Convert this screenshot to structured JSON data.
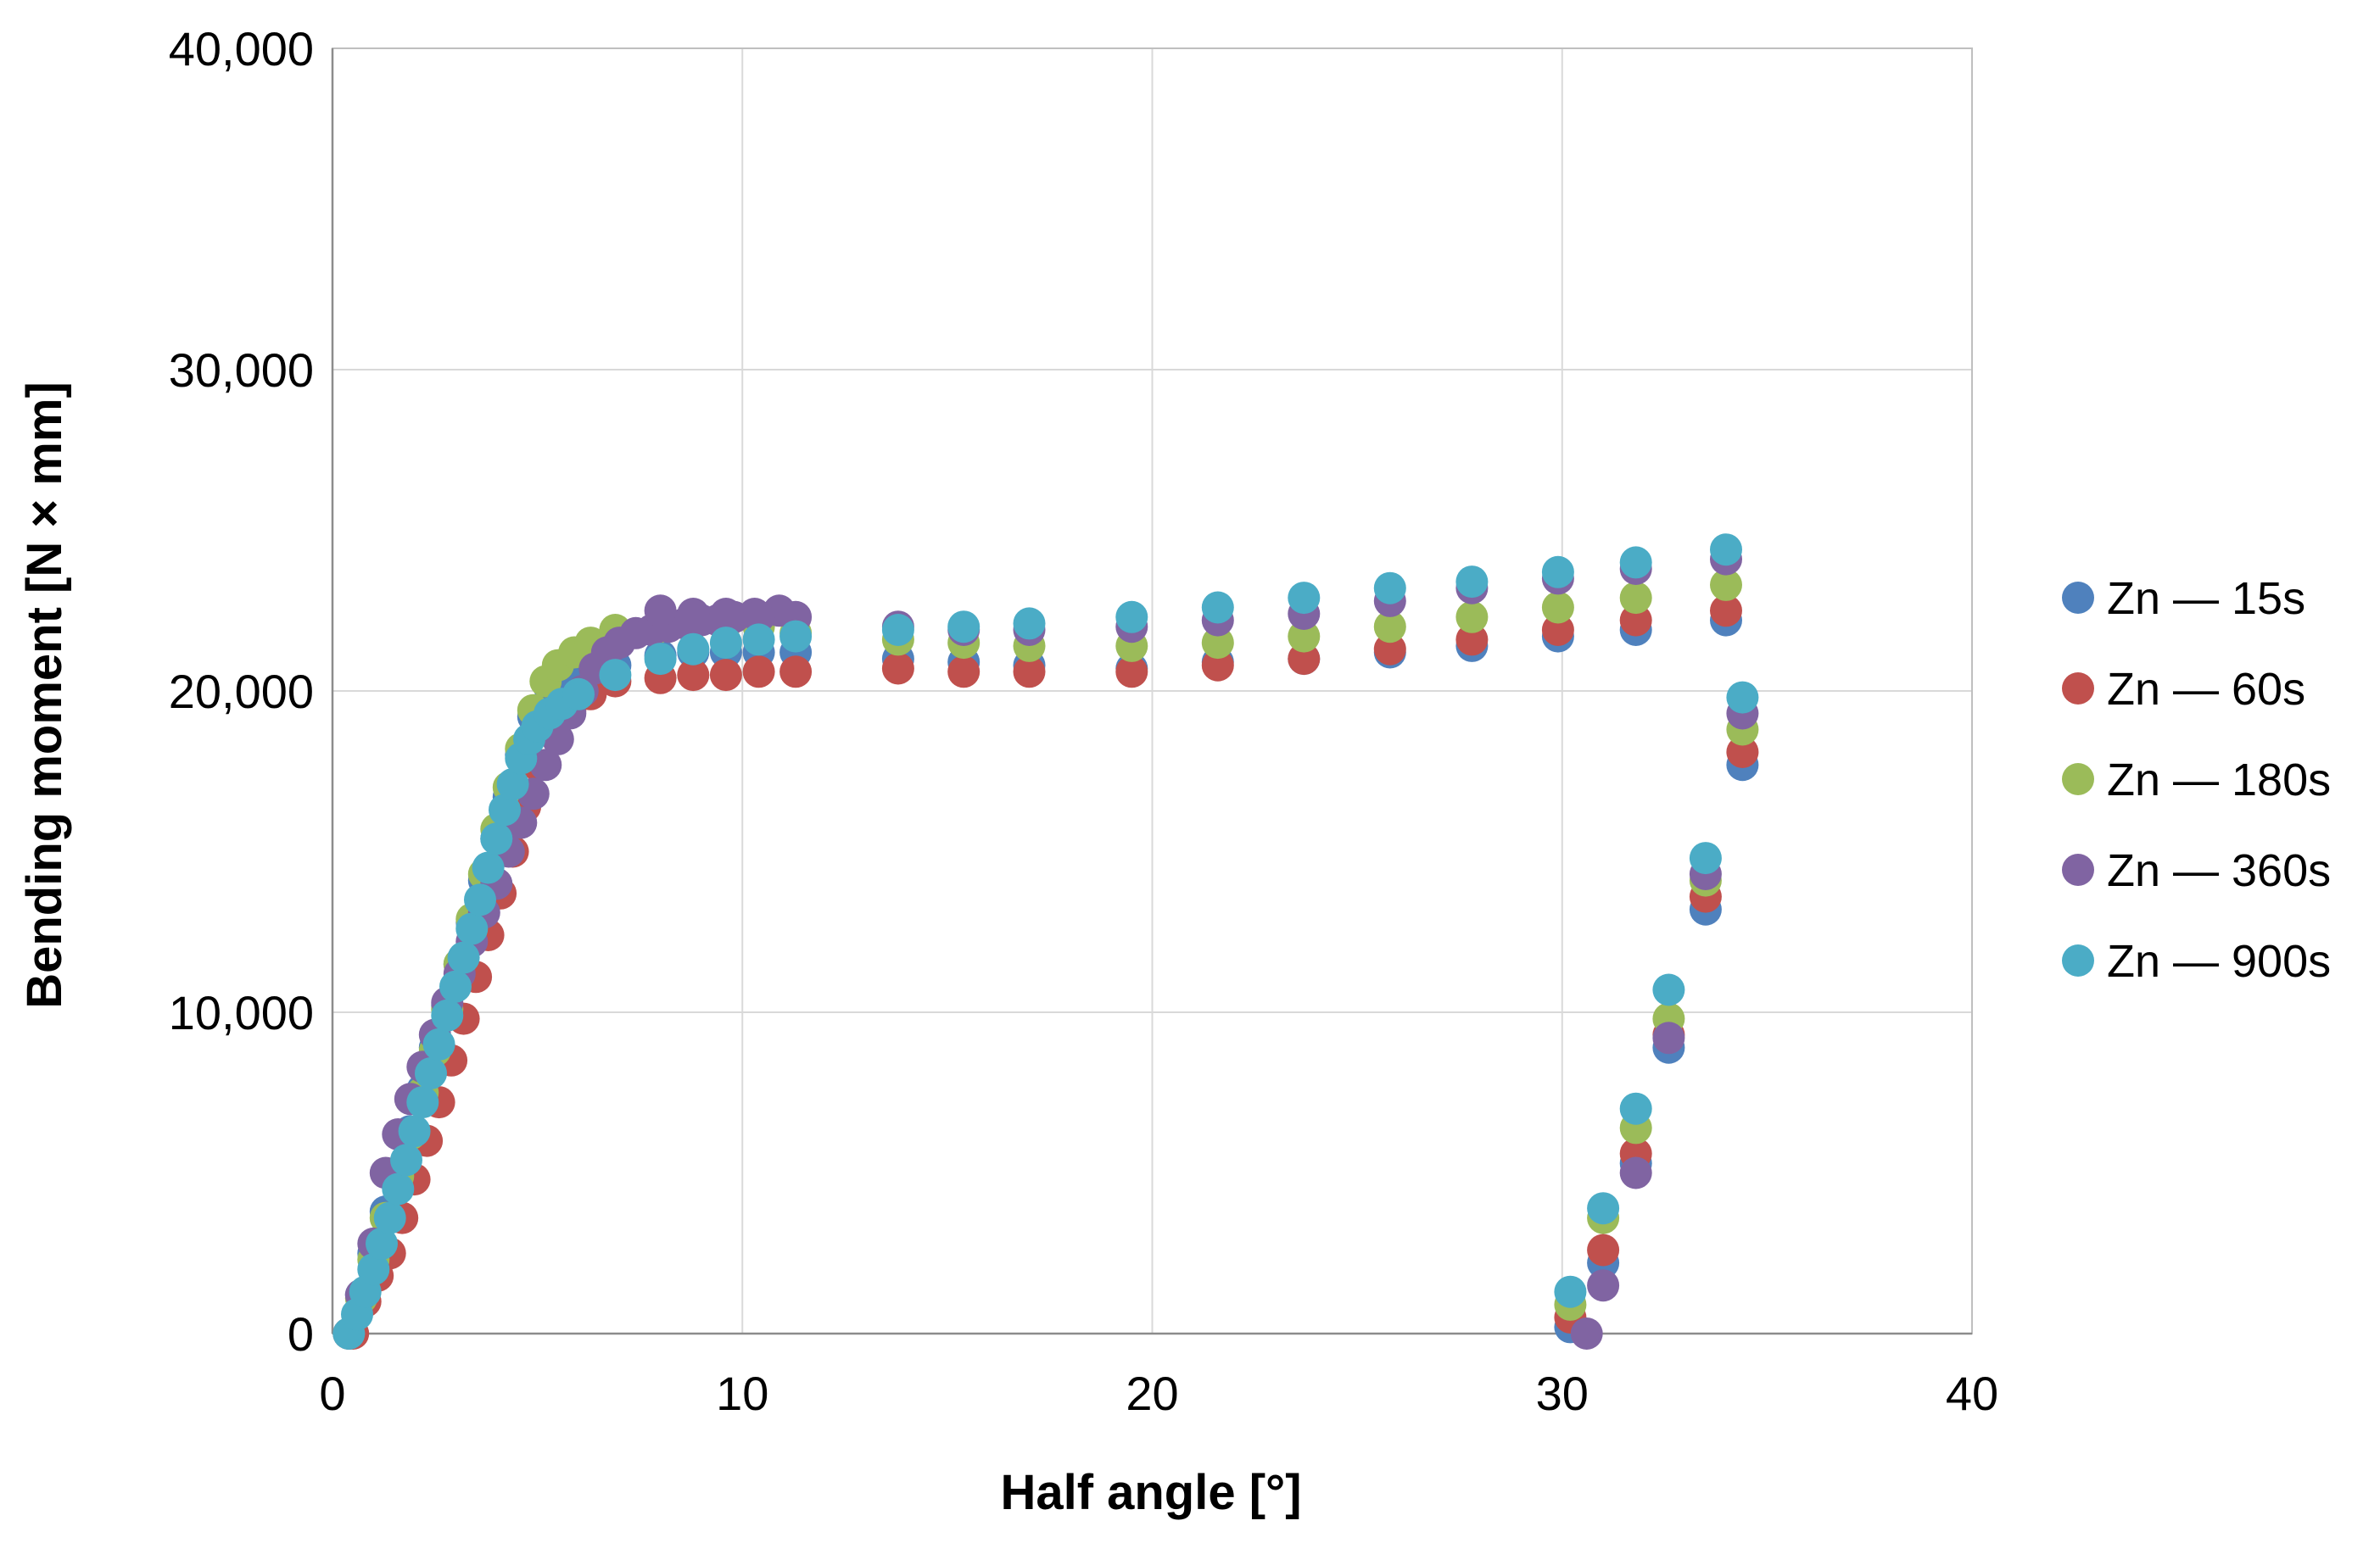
{
  "chart_data": {
    "type": "scatter",
    "title": "",
    "xlabel": "Half angle [°]",
    "ylabel": "Bending moment [N × mm]",
    "xlim": [
      0,
      40
    ],
    "ylim": [
      0,
      40000
    ],
    "x_ticks": [
      0,
      10,
      20,
      30,
      40
    ],
    "x_tick_labels": [
      "0",
      "10",
      "20",
      "30",
      "40"
    ],
    "y_ticks": [
      0,
      10000,
      20000,
      30000,
      40000
    ],
    "y_tick_labels": [
      "0",
      "10,000",
      "20,000",
      "30,000",
      "40,000"
    ],
    "grid": true,
    "legend_position": "right",
    "series": [
      {
        "name": "Zn — 15s",
        "color": "#4F81BD",
        "points": [
          [
            0.4,
            0
          ],
          [
            0.7,
            1200
          ],
          [
            1.0,
            2500
          ],
          [
            1.3,
            3800
          ],
          [
            1.6,
            5000
          ],
          [
            1.9,
            6300
          ],
          [
            2.2,
            7600
          ],
          [
            2.5,
            8900
          ],
          [
            2.8,
            10200
          ],
          [
            3.1,
            11500
          ],
          [
            3.4,
            12800
          ],
          [
            3.7,
            14100
          ],
          [
            4.0,
            15400
          ],
          [
            4.3,
            16700
          ],
          [
            4.6,
            18000
          ],
          [
            4.9,
            19200
          ],
          [
            5.3,
            20100
          ],
          [
            5.7,
            20500
          ],
          [
            6.2,
            20700
          ],
          [
            6.9,
            20800
          ],
          [
            8.0,
            21100
          ],
          [
            8.8,
            21200
          ],
          [
            9.6,
            21200
          ],
          [
            10.4,
            21200
          ],
          [
            11.3,
            21200
          ],
          [
            13.8,
            21000
          ],
          [
            15.4,
            20900
          ],
          [
            17.0,
            20800
          ],
          [
            19.5,
            20700
          ],
          [
            21.6,
            20900
          ],
          [
            23.7,
            21000
          ],
          [
            25.8,
            21200
          ],
          [
            27.8,
            21400
          ],
          [
            29.9,
            21700
          ],
          [
            31.8,
            21900
          ],
          [
            34.0,
            22200
          ],
          [
            34.4,
            17700
          ],
          [
            33.5,
            13200
          ],
          [
            32.6,
            8900
          ],
          [
            31.8,
            5300
          ],
          [
            31.0,
            2200
          ],
          [
            30.2,
            200
          ]
        ]
      },
      {
        "name": "Zn — 60s",
        "color": "#C0504D",
        "points": [
          [
            0.5,
            0
          ],
          [
            0.8,
            1000
          ],
          [
            1.1,
            1800
          ],
          [
            1.4,
            2500
          ],
          [
            1.7,
            3600
          ],
          [
            2.0,
            4800
          ],
          [
            2.3,
            6000
          ],
          [
            2.6,
            7200
          ],
          [
            2.9,
            8500
          ],
          [
            3.2,
            9800
          ],
          [
            3.5,
            11100
          ],
          [
            3.8,
            12400
          ],
          [
            4.1,
            13700
          ],
          [
            4.4,
            15000
          ],
          [
            4.7,
            16400
          ],
          [
            5.0,
            17700
          ],
          [
            5.4,
            18700
          ],
          [
            5.8,
            19400
          ],
          [
            6.3,
            19900
          ],
          [
            6.9,
            20300
          ],
          [
            8.0,
            20400
          ],
          [
            8.8,
            20500
          ],
          [
            9.6,
            20500
          ],
          [
            10.4,
            20600
          ],
          [
            11.3,
            20600
          ],
          [
            13.8,
            20700
          ],
          [
            15.4,
            20600
          ],
          [
            17.0,
            20600
          ],
          [
            19.5,
            20600
          ],
          [
            21.6,
            20800
          ],
          [
            23.7,
            21000
          ],
          [
            25.8,
            21300
          ],
          [
            27.8,
            21600
          ],
          [
            29.9,
            21900
          ],
          [
            31.8,
            22200
          ],
          [
            34.0,
            22500
          ],
          [
            34.4,
            18100
          ],
          [
            33.5,
            13600
          ],
          [
            32.6,
            9300
          ],
          [
            31.8,
            5600
          ],
          [
            31.0,
            2600
          ],
          [
            30.2,
            500
          ]
        ]
      },
      {
        "name": "Zn — 180s",
        "color": "#9BBB59",
        "points": [
          [
            0.4,
            0
          ],
          [
            0.7,
            1100
          ],
          [
            1.0,
            2300
          ],
          [
            1.3,
            3600
          ],
          [
            1.6,
            4900
          ],
          [
            1.9,
            6200
          ],
          [
            2.2,
            7500
          ],
          [
            2.5,
            8800
          ],
          [
            2.8,
            10100
          ],
          [
            3.1,
            11500
          ],
          [
            3.4,
            12900
          ],
          [
            3.7,
            14300
          ],
          [
            4.0,
            15700
          ],
          [
            4.3,
            17000
          ],
          [
            4.6,
            18200
          ],
          [
            4.9,
            19400
          ],
          [
            5.2,
            20300
          ],
          [
            5.5,
            20800
          ],
          [
            5.9,
            21200
          ],
          [
            6.3,
            21500
          ],
          [
            6.9,
            21900
          ],
          [
            8.0,
            22000
          ],
          [
            8.8,
            22100
          ],
          [
            9.6,
            22100
          ],
          [
            10.4,
            22000
          ],
          [
            11.3,
            21800
          ],
          [
            13.8,
            21600
          ],
          [
            15.4,
            21500
          ],
          [
            17.0,
            21400
          ],
          [
            19.5,
            21400
          ],
          [
            21.6,
            21500
          ],
          [
            23.7,
            21700
          ],
          [
            25.8,
            22000
          ],
          [
            27.8,
            22300
          ],
          [
            29.9,
            22600
          ],
          [
            31.8,
            22900
          ],
          [
            34.0,
            23300
          ],
          [
            34.4,
            18800
          ],
          [
            33.5,
            14100
          ],
          [
            32.6,
            9800
          ],
          [
            31.8,
            6400
          ],
          [
            31.0,
            3600
          ],
          [
            30.2,
            900
          ]
        ]
      },
      {
        "name": "Zn — 360s",
        "color": "#8064A2",
        "points": [
          [
            0.4,
            0
          ],
          [
            0.7,
            1200
          ],
          [
            1.0,
            2800
          ],
          [
            1.3,
            5000
          ],
          [
            1.6,
            6200
          ],
          [
            1.9,
            7300
          ],
          [
            2.2,
            8300
          ],
          [
            2.5,
            9300
          ],
          [
            2.8,
            10300
          ],
          [
            3.1,
            11200
          ],
          [
            3.4,
            12200
          ],
          [
            3.7,
            13100
          ],
          [
            4.0,
            14000
          ],
          [
            4.3,
            15000
          ],
          [
            4.6,
            15900
          ],
          [
            4.9,
            16800
          ],
          [
            5.2,
            17700
          ],
          [
            5.5,
            18500
          ],
          [
            5.8,
            19300
          ],
          [
            6.1,
            20000
          ],
          [
            6.4,
            20700
          ],
          [
            6.7,
            21200
          ],
          [
            7.0,
            21500
          ],
          [
            7.4,
            21800
          ],
          [
            7.8,
            21900
          ],
          [
            8.2,
            22000
          ],
          [
            8.6,
            22100
          ],
          [
            9.0,
            22200
          ],
          [
            9.4,
            22200
          ],
          [
            9.8,
            22300
          ],
          [
            10.3,
            22400
          ],
          [
            10.9,
            22500
          ],
          [
            8.0,
            22500
          ],
          [
            8.8,
            22400
          ],
          [
            9.6,
            22400
          ],
          [
            10.4,
            22300
          ],
          [
            11.3,
            22300
          ],
          [
            13.8,
            22000
          ],
          [
            15.4,
            21900
          ],
          [
            17.0,
            21900
          ],
          [
            19.5,
            22000
          ],
          [
            21.6,
            22200
          ],
          [
            23.7,
            22400
          ],
          [
            25.8,
            22800
          ],
          [
            27.8,
            23200
          ],
          [
            29.9,
            23500
          ],
          [
            31.8,
            23800
          ],
          [
            34.0,
            24100
          ],
          [
            34.4,
            19300
          ],
          [
            33.5,
            14300
          ],
          [
            32.6,
            9200
          ],
          [
            31.8,
            5000
          ],
          [
            31.0,
            1500
          ],
          [
            30.6,
            0
          ]
        ]
      },
      {
        "name": "Zn — 900s",
        "color": "#4BACC6",
        "points": [
          [
            0.4,
            0
          ],
          [
            0.6,
            600
          ],
          [
            0.8,
            1300
          ],
          [
            1.0,
            2000
          ],
          [
            1.2,
            2800
          ],
          [
            1.4,
            3600
          ],
          [
            1.6,
            4500
          ],
          [
            1.8,
            5400
          ],
          [
            2.0,
            6300
          ],
          [
            2.2,
            7200
          ],
          [
            2.4,
            8100
          ],
          [
            2.6,
            9000
          ],
          [
            2.8,
            9900
          ],
          [
            3.0,
            10800
          ],
          [
            3.2,
            11700
          ],
          [
            3.4,
            12600
          ],
          [
            3.6,
            13500
          ],
          [
            3.8,
            14500
          ],
          [
            4.0,
            15400
          ],
          [
            4.2,
            16300
          ],
          [
            4.4,
            17100
          ],
          [
            4.6,
            17900
          ],
          [
            4.8,
            18500
          ],
          [
            5.0,
            18900
          ],
          [
            5.3,
            19300
          ],
          [
            5.6,
            19600
          ],
          [
            6.0,
            19900
          ],
          [
            6.9,
            20500
          ],
          [
            8.0,
            21000
          ],
          [
            8.8,
            21300
          ],
          [
            9.6,
            21500
          ],
          [
            10.4,
            21600
          ],
          [
            11.3,
            21700
          ],
          [
            13.8,
            21900
          ],
          [
            15.4,
            22000
          ],
          [
            17.0,
            22100
          ],
          [
            19.5,
            22300
          ],
          [
            21.6,
            22600
          ],
          [
            23.7,
            22900
          ],
          [
            25.8,
            23200
          ],
          [
            27.8,
            23400
          ],
          [
            29.9,
            23700
          ],
          [
            31.8,
            24000
          ],
          [
            34.0,
            24400
          ],
          [
            34.4,
            19800
          ],
          [
            33.5,
            14800
          ],
          [
            32.6,
            10700
          ],
          [
            31.8,
            7000
          ],
          [
            31.0,
            3900
          ],
          [
            30.2,
            1300
          ]
        ]
      }
    ]
  }
}
